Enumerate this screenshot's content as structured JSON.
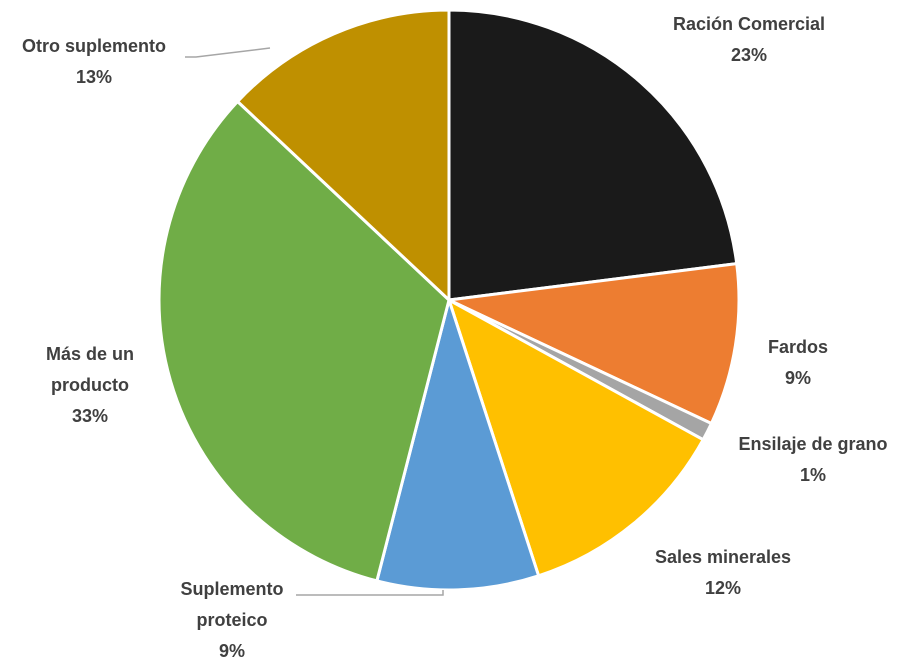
{
  "chart_data": {
    "type": "pie",
    "title": "",
    "slices": [
      {
        "name": "Ración Comercial",
        "value": 23,
        "label_lines": [
          "Ración Comercial"
        ],
        "pct": "23%",
        "color": "#1a1a1a"
      },
      {
        "name": "Fardos",
        "value": 9,
        "label_lines": [
          "Fardos"
        ],
        "pct": "9%",
        "color": "#ed7d31"
      },
      {
        "name": "Ensilaje de grano",
        "value": 1,
        "label_lines": [
          "Ensilaje de grano"
        ],
        "pct": "1%",
        "color": "#a5a5a5"
      },
      {
        "name": "Sales minerales",
        "value": 12,
        "label_lines": [
          "Sales minerales"
        ],
        "pct": "12%",
        "color": "#ffc000"
      },
      {
        "name": "Suplemento proteico",
        "value": 9,
        "label_lines": [
          "Suplemento",
          "proteico"
        ],
        "pct": "9%",
        "color": "#5b9bd5"
      },
      {
        "name": "Más de un producto",
        "value": 33,
        "label_lines": [
          "Más de un",
          "producto"
        ],
        "pct": "33%",
        "color": "#70ad47"
      },
      {
        "name": "Otro suplemento",
        "value": 13,
        "label_lines": [
          "Otro suplemento"
        ],
        "pct": "13%",
        "color": "#bf9000"
      }
    ],
    "legend": "none",
    "label_color": "#404040"
  }
}
